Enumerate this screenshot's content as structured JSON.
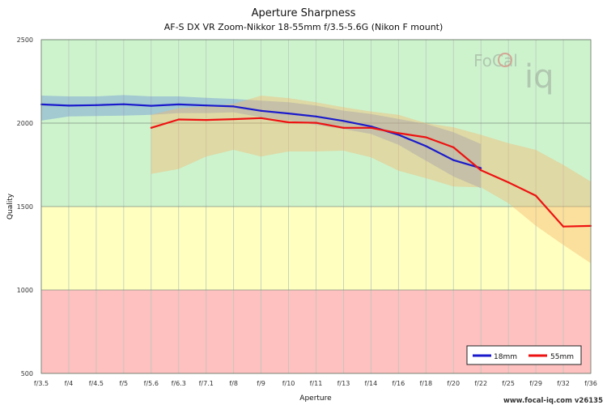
{
  "chart_data": {
    "type": "line",
    "title": "Aperture Sharpness",
    "subtitle": "AF-S DX VR Zoom-Nikkor 18-55mm f/3.5-5.6G (Nikon F mount)",
    "xlabel": "Aperture",
    "ylabel": "Quality",
    "categories": [
      "f/3.5",
      "f/4",
      "f/4.5",
      "f/5",
      "f/5.6",
      "f/6.3",
      "f/7.1",
      "f/8",
      "f/9",
      "f/10",
      "f/11",
      "f/13",
      "f/14",
      "f/16",
      "f/18",
      "f/20",
      "f/22",
      "f/25",
      "f/29",
      "f/32",
      "f/36"
    ],
    "ylim": [
      500,
      2500
    ],
    "yticks": [
      500,
      1000,
      1500,
      2000,
      2500
    ],
    "grid": true,
    "zones": [
      {
        "from": 1500,
        "to": 2500,
        "color": "#cdf3cd"
      },
      {
        "from": 1000,
        "to": 1500,
        "color": "#ffffc0"
      },
      {
        "from": 500,
        "to": 1000,
        "color": "#ffc0c0"
      }
    ],
    "series": [
      {
        "name": "18mm",
        "color": "#1a1acc",
        "band_color": "#6a8fd6",
        "values": [
          2112,
          2105,
          2108,
          2113,
          2104,
          2112,
          2106,
          2100,
          2074,
          2058,
          2040,
          2013,
          1980,
          1930,
          1862,
          1778,
          1730,
          null,
          null,
          null,
          null
        ],
        "band_upper": [
          2165,
          2160,
          2160,
          2168,
          2160,
          2160,
          2152,
          2145,
          2135,
          2125,
          2105,
          2075,
          2055,
          2025,
          1995,
          1945,
          1875,
          null,
          null,
          null,
          null
        ],
        "band_lower": [
          2015,
          2040,
          2042,
          2045,
          2050,
          2060,
          2060,
          2065,
          2035,
          2015,
          1990,
          1965,
          1935,
          1870,
          1775,
          1680,
          1610,
          null,
          null,
          null,
          null
        ]
      },
      {
        "name": "55mm",
        "color": "#ee1111",
        "band_color": "#f5b46e",
        "values": [
          null,
          null,
          null,
          null,
          1972,
          2022,
          2019,
          2024,
          2030,
          2005,
          2002,
          1972,
          1972,
          1940,
          1915,
          1855,
          1718,
          1645,
          1565,
          1380,
          1384
        ],
        "band_upper": [
          null,
          null,
          null,
          null,
          2050,
          2090,
          2100,
          2115,
          2165,
          2150,
          2125,
          2095,
          2070,
          2050,
          2000,
          1975,
          1930,
          1880,
          1840,
          1750,
          1650
        ],
        "band_lower": [
          null,
          null,
          null,
          null,
          1695,
          1725,
          1800,
          1840,
          1800,
          1830,
          1830,
          1835,
          1795,
          1715,
          1670,
          1620,
          1615,
          1520,
          1385,
          1270,
          1160
        ]
      }
    ],
    "legend_position": "bottom-right",
    "watermark": {
      "text": "www.focal-iq.com  v26135",
      "logo": "FoCal iQ"
    }
  }
}
